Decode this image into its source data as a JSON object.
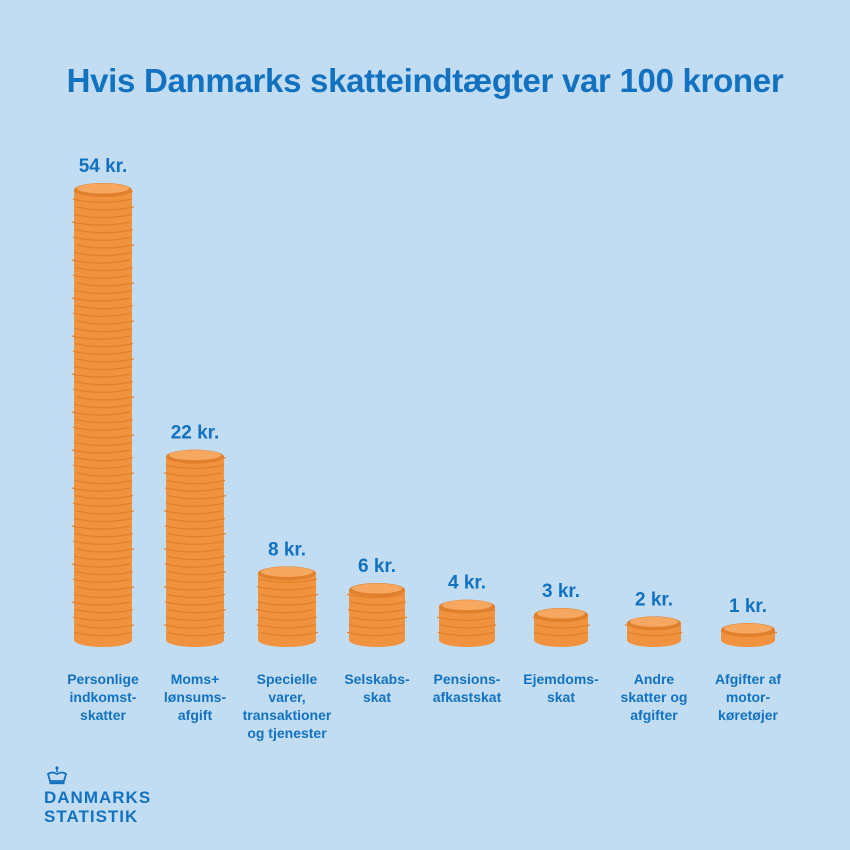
{
  "chart_data": {
    "type": "bar",
    "title": "Hvis Danmarks skatteindtægter var 100 kroner",
    "categories": [
      "Personlige\nindkomst-\nskatter",
      "Moms+\nlønsums-\nafgift",
      "Specielle\nvarer,\ntransaktioner\nog tjenester",
      "Selskabs-\nskat",
      "Pensions-\nafkastskat",
      "Ejemdoms-\nskat",
      "Andre\nskatter og\nafgifter",
      "Afgifter af\nmotor-\nkøretøjer"
    ],
    "values": [
      54,
      22,
      8,
      6,
      4,
      3,
      2,
      1
    ],
    "value_labels": [
      "54 kr.",
      "22 kr.",
      "8 kr.",
      "6 kr.",
      "4 kr.",
      "3 kr.",
      "2 kr.",
      "1 kr."
    ],
    "unit": "kr.",
    "colors": {
      "coin": "#f0923e",
      "coin_top": "#f7a860",
      "coin_edge": "#e07f2c",
      "text": "#1272c0",
      "background": "#c2ddf2"
    }
  },
  "logo": {
    "line1": "DANMARKS",
    "line2": "STATISTIK"
  }
}
